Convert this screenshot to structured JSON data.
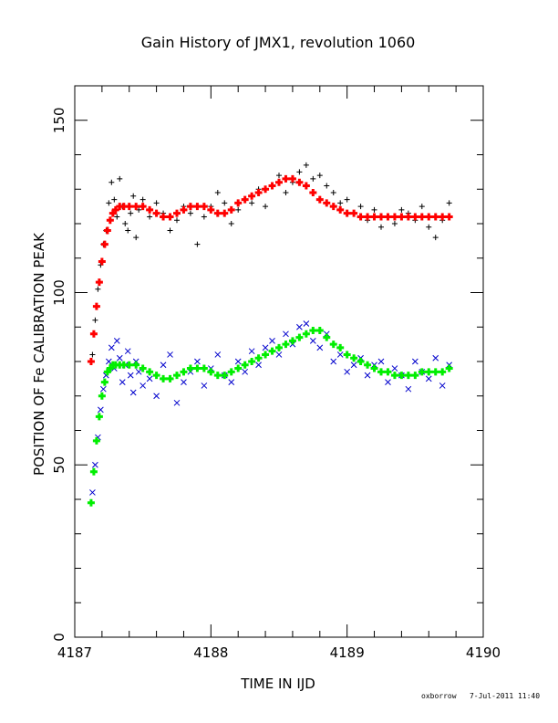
{
  "chart_data": {
    "type": "scatter",
    "title": "Gain History of JMX1, revolution 1060",
    "xlabel": "TIME IN IJD",
    "ylabel": "POSITION OF Fe CALIBRATION PEAK",
    "xlim": [
      4187,
      4190
    ],
    "ylim": [
      0,
      160
    ],
    "x_ticks": [
      4187,
      4188,
      4189,
      4190
    ],
    "x_tick_labels": [
      "4187",
      "4188",
      "4189",
      "4190"
    ],
    "y_ticks": [
      0,
      50,
      100,
      150
    ],
    "y_tick_labels": [
      "0",
      "50",
      "100",
      "150"
    ],
    "grid": false,
    "series": [
      {
        "marker": "+",
        "color": "#000000",
        "x": [
          4187.13,
          4187.15,
          4187.17,
          4187.19,
          4187.21,
          4187.23,
          4187.25,
          4187.27,
          4187.29,
          4187.31,
          4187.33,
          4187.35,
          4187.37,
          4187.39,
          4187.41,
          4187.43,
          4187.45,
          4187.47,
          4187.5,
          4187.55,
          4187.6,
          4187.65,
          4187.7,
          4187.75,
          4187.8,
          4187.85,
          4187.9,
          4187.95,
          4188.0,
          4188.05,
          4188.1,
          4188.15,
          4188.2,
          4188.25,
          4188.3,
          4188.35,
          4188.4,
          4188.45,
          4188.5,
          4188.55,
          4188.6,
          4188.65,
          4188.7,
          4188.75,
          4188.8,
          4188.85,
          4188.9,
          4188.95,
          4189.0,
          4189.05,
          4189.1,
          4189.15,
          4189.2,
          4189.25,
          4189.3,
          4189.35,
          4189.4,
          4189.45,
          4189.5,
          4189.55,
          4189.6,
          4189.65,
          4189.7,
          4189.75
        ],
        "y": [
          82,
          92,
          101,
          108,
          114,
          118,
          126,
          132,
          127,
          122,
          133,
          125,
          120,
          118,
          123,
          128,
          116,
          124,
          127,
          122,
          126,
          123,
          118,
          121,
          125,
          123,
          114,
          122,
          125,
          129,
          126,
          120,
          124,
          127,
          126,
          130,
          125,
          131,
          134,
          129,
          132,
          135,
          137,
          133,
          134,
          131,
          129,
          126,
          127,
          123,
          125,
          121,
          124,
          119,
          122,
          120,
          124,
          123,
          121,
          125,
          119,
          116,
          121,
          126
        ]
      },
      {
        "marker": "x",
        "color": "#0000cc",
        "x": [
          4187.13,
          4187.15,
          4187.17,
          4187.19,
          4187.21,
          4187.23,
          4187.25,
          4187.27,
          4187.29,
          4187.31,
          4187.33,
          4187.35,
          4187.37,
          4187.39,
          4187.41,
          4187.43,
          4187.45,
          4187.47,
          4187.5,
          4187.55,
          4187.6,
          4187.65,
          4187.7,
          4187.75,
          4187.8,
          4187.85,
          4187.9,
          4187.95,
          4188.0,
          4188.05,
          4188.1,
          4188.15,
          4188.2,
          4188.25,
          4188.3,
          4188.35,
          4188.4,
          4188.45,
          4188.5,
          4188.55,
          4188.6,
          4188.65,
          4188.7,
          4188.75,
          4188.8,
          4188.85,
          4188.9,
          4188.95,
          4189.0,
          4189.05,
          4189.1,
          4189.15,
          4189.2,
          4189.25,
          4189.3,
          4189.35,
          4189.4,
          4189.45,
          4189.5,
          4189.55,
          4189.6,
          4189.65,
          4189.7,
          4189.75
        ],
        "y": [
          42,
          50,
          58,
          66,
          72,
          76,
          80,
          84,
          78,
          86,
          81,
          74,
          79,
          83,
          76,
          71,
          80,
          77,
          73,
          75,
          70,
          79,
          82,
          68,
          74,
          77,
          80,
          73,
          78,
          82,
          76,
          74,
          80,
          77,
          83,
          79,
          84,
          86,
          82,
          88,
          85,
          90,
          91,
          86,
          84,
          88,
          80,
          82,
          77,
          79,
          81,
          76,
          79,
          80,
          74,
          78,
          76,
          72,
          80,
          77,
          75,
          81,
          73,
          79
        ]
      },
      {
        "marker": "+",
        "color": "#ff0000",
        "x": [
          4187.12,
          4187.14,
          4187.16,
          4187.18,
          4187.2,
          4187.22,
          4187.24,
          4187.26,
          4187.28,
          4187.3,
          4187.33,
          4187.36,
          4187.4,
          4187.45,
          4187.5,
          4187.55,
          4187.6,
          4187.65,
          4187.7,
          4187.75,
          4187.8,
          4187.85,
          4187.9,
          4187.95,
          4188.0,
          4188.05,
          4188.1,
          4188.15,
          4188.2,
          4188.25,
          4188.3,
          4188.35,
          4188.4,
          4188.45,
          4188.5,
          4188.55,
          4188.6,
          4188.65,
          4188.7,
          4188.75,
          4188.8,
          4188.85,
          4188.9,
          4188.95,
          4189.0,
          4189.05,
          4189.1,
          4189.15,
          4189.2,
          4189.25,
          4189.3,
          4189.35,
          4189.4,
          4189.45,
          4189.5,
          4189.55,
          4189.6,
          4189.65,
          4189.7,
          4189.75
        ],
        "y": [
          80,
          88,
          96,
          103,
          109,
          114,
          118,
          121,
          123,
          124,
          125,
          125,
          125,
          125,
          125,
          124,
          123,
          122,
          122,
          123,
          124,
          125,
          125,
          125,
          124,
          123,
          123,
          124,
          126,
          127,
          128,
          129,
          130,
          131,
          132,
          133,
          133,
          132,
          131,
          129,
          127,
          126,
          125,
          124,
          123,
          123,
          122,
          122,
          122,
          122,
          122,
          122,
          122,
          122,
          122,
          122,
          122,
          122,
          122,
          122
        ]
      },
      {
        "marker": "+",
        "color": "#00ee00",
        "x": [
          4187.12,
          4187.14,
          4187.16,
          4187.18,
          4187.2,
          4187.22,
          4187.24,
          4187.26,
          4187.28,
          4187.3,
          4187.33,
          4187.36,
          4187.4,
          4187.45,
          4187.5,
          4187.55,
          4187.6,
          4187.65,
          4187.7,
          4187.75,
          4187.8,
          4187.85,
          4187.9,
          4187.95,
          4188.0,
          4188.05,
          4188.1,
          4188.15,
          4188.2,
          4188.25,
          4188.3,
          4188.35,
          4188.4,
          4188.45,
          4188.5,
          4188.55,
          4188.6,
          4188.65,
          4188.7,
          4188.75,
          4188.8,
          4188.85,
          4188.9,
          4188.95,
          4189.0,
          4189.05,
          4189.1,
          4189.15,
          4189.2,
          4189.25,
          4189.3,
          4189.35,
          4189.4,
          4189.45,
          4189.5,
          4189.55,
          4189.6,
          4189.65,
          4189.7,
          4189.75
        ],
        "y": [
          39,
          48,
          57,
          64,
          70,
          74,
          77,
          78,
          79,
          79,
          79,
          79,
          79,
          79,
          78,
          77,
          76,
          75,
          75,
          76,
          77,
          78,
          78,
          78,
          77,
          76,
          76,
          77,
          78,
          79,
          80,
          81,
          82,
          83,
          84,
          85,
          86,
          87,
          88,
          89,
          89,
          87,
          85,
          84,
          82,
          81,
          80,
          79,
          78,
          77,
          77,
          76,
          76,
          76,
          76,
          77,
          77,
          77,
          77,
          78
        ]
      }
    ]
  },
  "footer": {
    "text": "oxborrow   7-Jul-2011 11:40"
  }
}
